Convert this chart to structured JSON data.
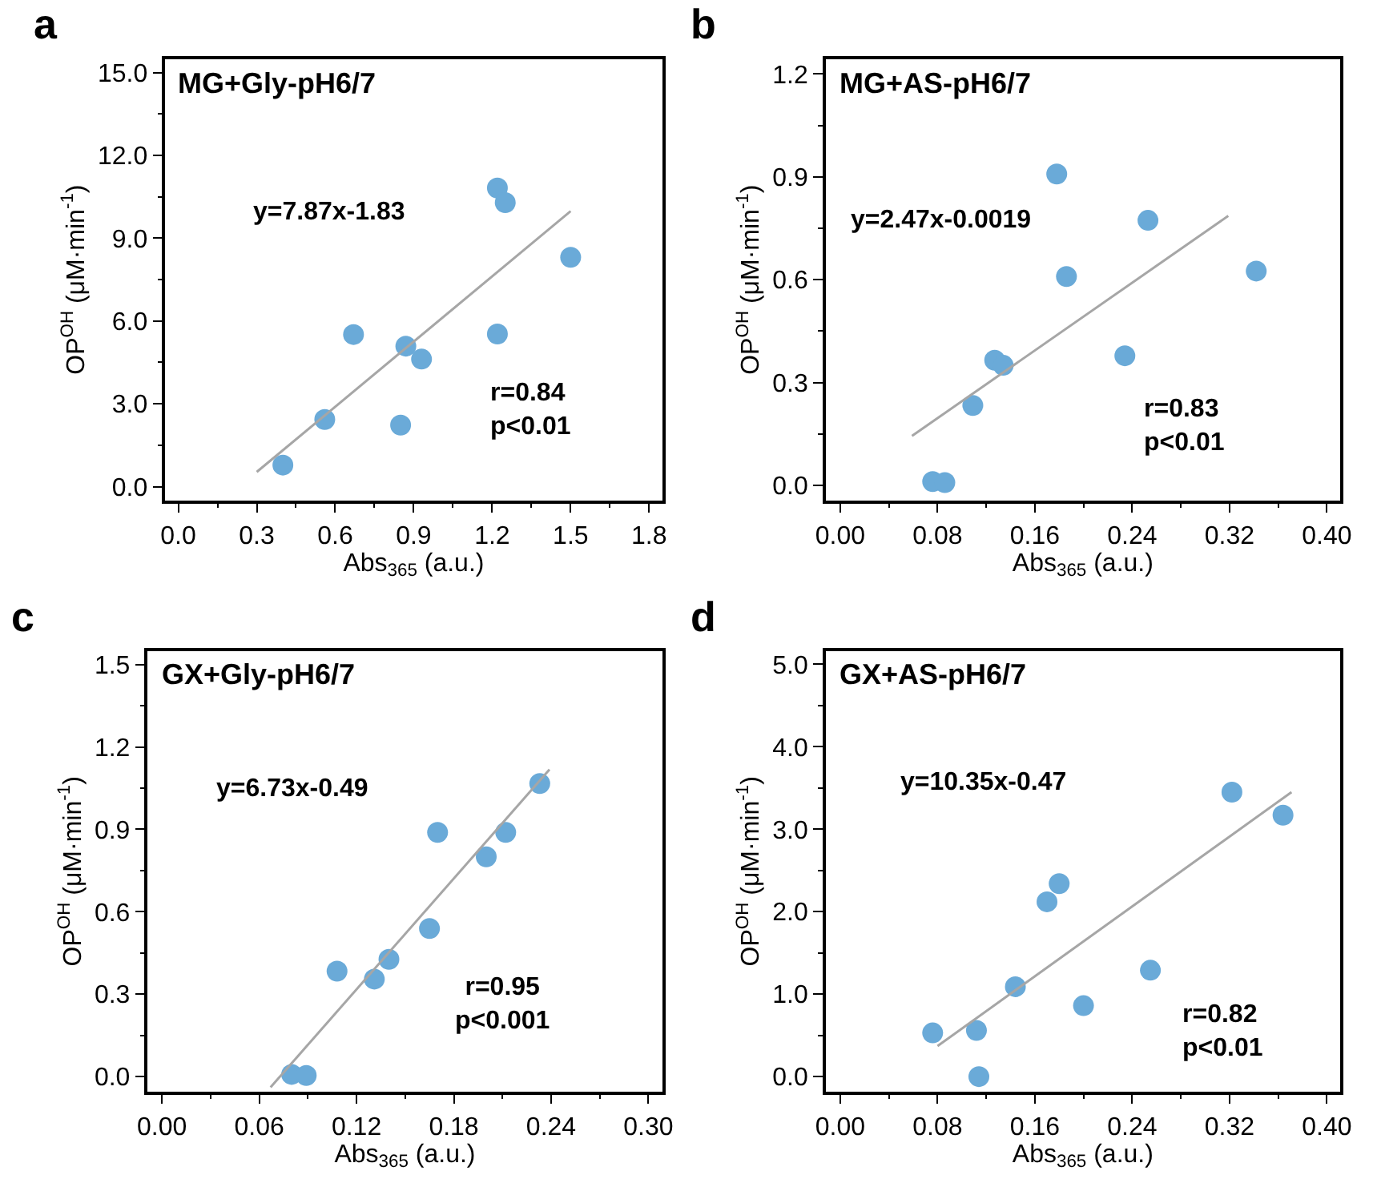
{
  "chart_data": [
    {
      "type": "scatter",
      "title": "MG+Gly-pH6/7",
      "xlabel": "Abs$_{365}$ (a.u.)",
      "ylabel": "OP$^{OH}$ (μM·min$^{-1}$)",
      "annotations": [
        "a",
        "y=7.87x-1.83",
        "r=0.84\np<0.01"
      ],
      "xlim": [
        -0.05,
        1.85
      ],
      "ylim": [
        -0.5,
        15.5
      ],
      "xticks": [
        {
          "value": 0,
          "label": "0.0"
        },
        0.3,
        0.6,
        0.9,
        1.2,
        1.5,
        1.8,
        {
          "value": 0.15,
          "label": null
        },
        {
          "value": 0.45,
          "label": null
        },
        {
          "value": 0.75,
          "label": null
        },
        {
          "value": 1.05,
          "label": null
        },
        {
          "value": 1.35,
          "label": null
        },
        {
          "value": 1.65,
          "label": null
        }
      ],
      "yticks": [
        {
          "value": 0,
          "label": "0.0"
        },
        {
          "value": 3,
          "label": "3.0"
        },
        {
          "value": 6,
          "label": "6.0"
        },
        {
          "value": 9,
          "label": "9.0"
        },
        {
          "value": 12,
          "label": "12.0"
        },
        {
          "value": 15,
          "label": "15.0"
        },
        {
          "value": 1.5,
          "label": null
        },
        {
          "value": 4.5,
          "label": null
        },
        {
          "value": 7.5,
          "label": null
        },
        {
          "value": 10.5,
          "label": null
        },
        {
          "value": 13.5,
          "label": null
        }
      ],
      "series": [
        {
          "marker": "circle",
          "color": "#6aaad8",
          "x": [
            0.4,
            0.56,
            0.67,
            0.85,
            0.87,
            0.93,
            1.22,
            1.22,
            1.25,
            1.5
          ],
          "values": [
            0.78,
            2.43,
            5.51,
            2.23,
            5.09,
            4.62,
            5.53,
            10.82,
            10.29,
            8.31
          ]
        },
        {
          "type": "line",
          "color": "#a6a6a6",
          "x": [
            0.3,
            1.5
          ],
          "values": [
            0.53,
            9.98
          ]
        }
      ]
    },
    {
      "type": "scatter",
      "title": "MG+AS-pH6/7",
      "xlabel": "Abs$_{365}$ (a.u.)",
      "ylabel": "OP$^{OH}$ (μM·min$^{-1}$)",
      "annotations": [
        "b",
        "y=2.47x-0.0019",
        "r=0.83\np<0.01"
      ],
      "xlim": [
        -0.012,
        0.411
      ],
      "ylim": [
        -0.044,
        1.244
      ],
      "xticks": [
        {
          "value": 0,
          "label": "0.00"
        },
        0.08,
        0.16,
        0.24,
        0.32,
        {
          "value": 0.4,
          "label": "0.40"
        },
        {
          "value": 0.04,
          "label": null
        },
        {
          "value": 0.12,
          "label": null
        },
        {
          "value": 0.2,
          "label": null
        },
        {
          "value": 0.28,
          "label": null
        },
        {
          "value": 0.36,
          "label": null
        }
      ],
      "yticks": [
        {
          "value": 0,
          "label": "0.0"
        },
        0.3,
        0.6,
        0.9,
        1.2,
        {
          "value": 0.15,
          "label": null
        },
        {
          "value": 0.45,
          "label": null
        },
        {
          "value": 0.75,
          "label": null
        },
        {
          "value": 1.05,
          "label": null
        }
      ],
      "series": [
        {
          "marker": "circle",
          "color": "#6aaad8",
          "x": [
            0.076,
            0.086,
            0.109,
            0.127,
            0.134,
            0.178,
            0.186,
            0.234,
            0.253,
            0.342
          ],
          "values": [
            0.011,
            0.008,
            0.233,
            0.365,
            0.35,
            0.908,
            0.609,
            0.378,
            0.773,
            0.625
          ]
        },
        {
          "type": "line",
          "color": "#a6a6a6",
          "x": [
            0.059,
            0.319
          ],
          "values": [
            0.144,
            0.786
          ]
        }
      ]
    },
    {
      "type": "scatter",
      "title": "GX+Gly-pH6/7",
      "xlabel": "Abs$_{365}$ (a.u.)",
      "ylabel": "OP$^{OH}$ (μM·min$^{-1}$)",
      "annotations": [
        "c",
        "y=6.73x-0.49",
        "r=0.95\np<0.001"
      ],
      "xlim": [
        -0.0088,
        0.3085
      ],
      "ylim": [
        -0.054,
        1.549
      ],
      "xticks": [
        {
          "value": 0,
          "label": "0.00"
        },
        0.06,
        0.12,
        0.18,
        0.24,
        {
          "value": 0.3,
          "label": "0.30"
        },
        {
          "value": 0.03,
          "label": null
        },
        {
          "value": 0.09,
          "label": null
        },
        {
          "value": 0.15,
          "label": null
        },
        {
          "value": 0.21,
          "label": null
        },
        {
          "value": 0.27,
          "label": null
        }
      ],
      "yticks": [
        {
          "value": 0,
          "label": "0.0"
        },
        0.3,
        0.6,
        0.9,
        1.2,
        1.5,
        {
          "value": 0.15,
          "label": null
        },
        {
          "value": 0.45,
          "label": null
        },
        {
          "value": 0.75,
          "label": null
        },
        {
          "value": 1.05,
          "label": null
        },
        {
          "value": 1.35,
          "label": null
        }
      ],
      "series": [
        {
          "marker": "circle",
          "color": "#6aaad8",
          "x": [
            0.08,
            0.089,
            0.108,
            0.131,
            0.14,
            0.165,
            0.17,
            0.2,
            0.212,
            0.233
          ],
          "values": [
            0.008,
            0.004,
            0.384,
            0.355,
            0.427,
            0.539,
            0.889,
            0.8,
            0.889,
            1.067
          ]
        },
        {
          "type": "line",
          "color": "#a6a6a6",
          "x": [
            0.067,
            0.239
          ],
          "values": [
            -0.039,
            1.118
          ]
        }
      ]
    },
    {
      "type": "scatter",
      "title": "GX+AS-pH6/7",
      "xlabel": "Abs$_{365}$ (a.u.)",
      "ylabel": "OP$^{OH}$ (μM·min$^{-1}$)",
      "annotations": [
        "d",
        "y=10.35x-0.47",
        "r=0.82\np<0.01"
      ],
      "xlim": [
        -0.012,
        0.411
      ],
      "ylim": [
        -0.18,
        5.16
      ],
      "xticks": [
        {
          "value": 0,
          "label": "0.00"
        },
        0.08,
        0.16,
        0.24,
        0.32,
        {
          "value": 0.4,
          "label": "0.40"
        },
        {
          "value": 0.04,
          "label": null
        },
        {
          "value": 0.12,
          "label": null
        },
        {
          "value": 0.2,
          "label": null
        },
        {
          "value": 0.28,
          "label": null
        },
        {
          "value": 0.36,
          "label": null
        }
      ],
      "yticks": [
        {
          "value": 0,
          "label": "0.0"
        },
        {
          "value": 1,
          "label": "1.0"
        },
        {
          "value": 2,
          "label": "2.0"
        },
        {
          "value": 3,
          "label": "3.0"
        },
        {
          "value": 4,
          "label": "4.0"
        },
        {
          "value": 5,
          "label": "5.0"
        },
        {
          "value": 0.5,
          "label": null
        },
        {
          "value": 1.5,
          "label": null
        },
        {
          "value": 2.5,
          "label": null
        },
        {
          "value": 3.5,
          "label": null
        },
        {
          "value": 4.5,
          "label": null
        }
      ],
      "series": [
        {
          "marker": "circle",
          "color": "#6aaad8",
          "x": [
            0.076,
            0.112,
            0.114,
            0.144,
            0.17,
            0.18,
            0.2,
            0.255,
            0.322,
            0.364
          ],
          "values": [
            0.53,
            0.56,
            0.0,
            1.09,
            2.12,
            2.34,
            0.86,
            1.29,
            3.45,
            3.17
          ]
        },
        {
          "type": "line",
          "color": "#a6a6a6",
          "x": [
            0.08,
            0.371
          ],
          "values": [
            0.37,
            3.45
          ]
        }
      ]
    }
  ]
}
